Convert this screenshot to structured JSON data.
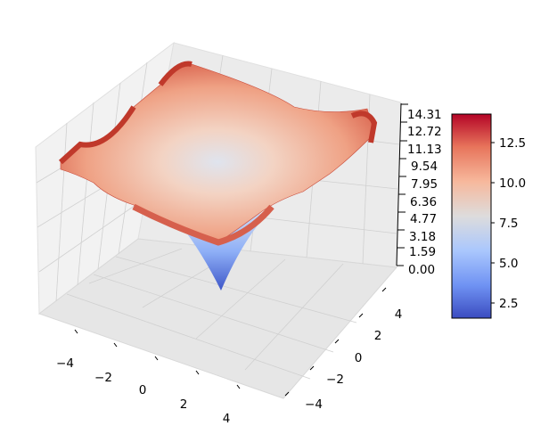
{
  "chart_data": {
    "type": "surface3d",
    "title": "",
    "xlabel": "",
    "ylabel": "",
    "zlabel": "",
    "x_range": [
      -5,
      5
    ],
    "y_range": [
      -5,
      5
    ],
    "z_range": [
      0.0,
      14.31
    ],
    "x_ticks": [
      "−4",
      "−2",
      "0",
      "2",
      "4"
    ],
    "y_ticks": [
      "−4",
      "−2",
      "0",
      "2",
      "4"
    ],
    "z_ticks": [
      "0.00",
      "1.59",
      "3.18",
      "4.77",
      "6.36",
      "7.95",
      "9.54",
      "11.13",
      "12.72",
      "14.31"
    ],
    "surface": {
      "description_values": {
        "center_min": 0.0,
        "corner_max": 14.3,
        "edge_mid_max": 12.0
      },
      "colormap": "coolwarm"
    },
    "colorbar": {
      "range": [
        1.5,
        14.3
      ],
      "ticks": [
        "2.5",
        "5.0",
        "7.5",
        "10.0",
        "12.5"
      ],
      "colors": [
        "#3b4cc0",
        "#6f92f3",
        "#aac7fd",
        "#dddcdc",
        "#f7b89c",
        "#e7745b",
        "#b40426"
      ]
    },
    "grid": true
  }
}
